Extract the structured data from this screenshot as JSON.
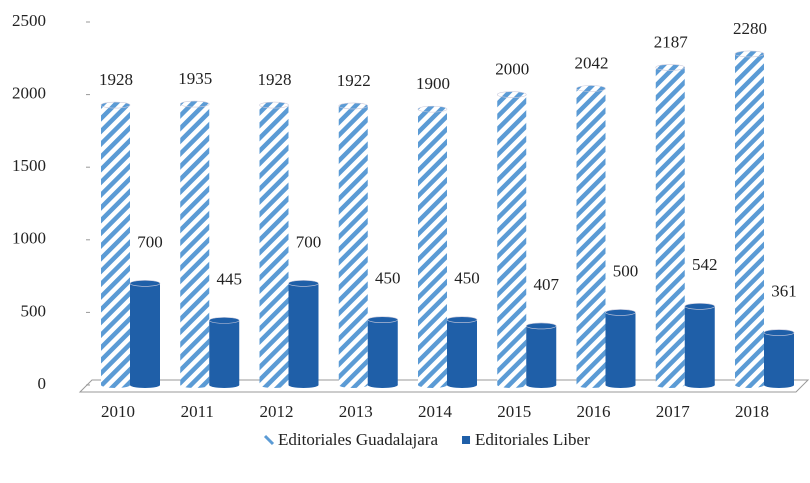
{
  "chart_data": {
    "type": "bar3d",
    "categories": [
      "2010",
      "2011",
      "2012",
      "2013",
      "2014",
      "2015",
      "2016",
      "2017",
      "2018"
    ],
    "series": [
      {
        "name": "Editoriales Guadalajara",
        "color": "#5b9bd5",
        "pattern": "hatched",
        "values": [
          1928,
          1935,
          1928,
          1922,
          1900,
          2000,
          2042,
          2187,
          2280
        ]
      },
      {
        "name": "Editoriales Liber",
        "color": "#1f5fa8",
        "values": [
          700,
          445,
          700,
          450,
          450,
          407,
          500,
          542,
          361
        ]
      }
    ],
    "ylim": [
      0,
      2500
    ],
    "yticks": [
      0,
      500,
      1000,
      1500,
      2000,
      2500
    ],
    "legend": "bottom"
  }
}
